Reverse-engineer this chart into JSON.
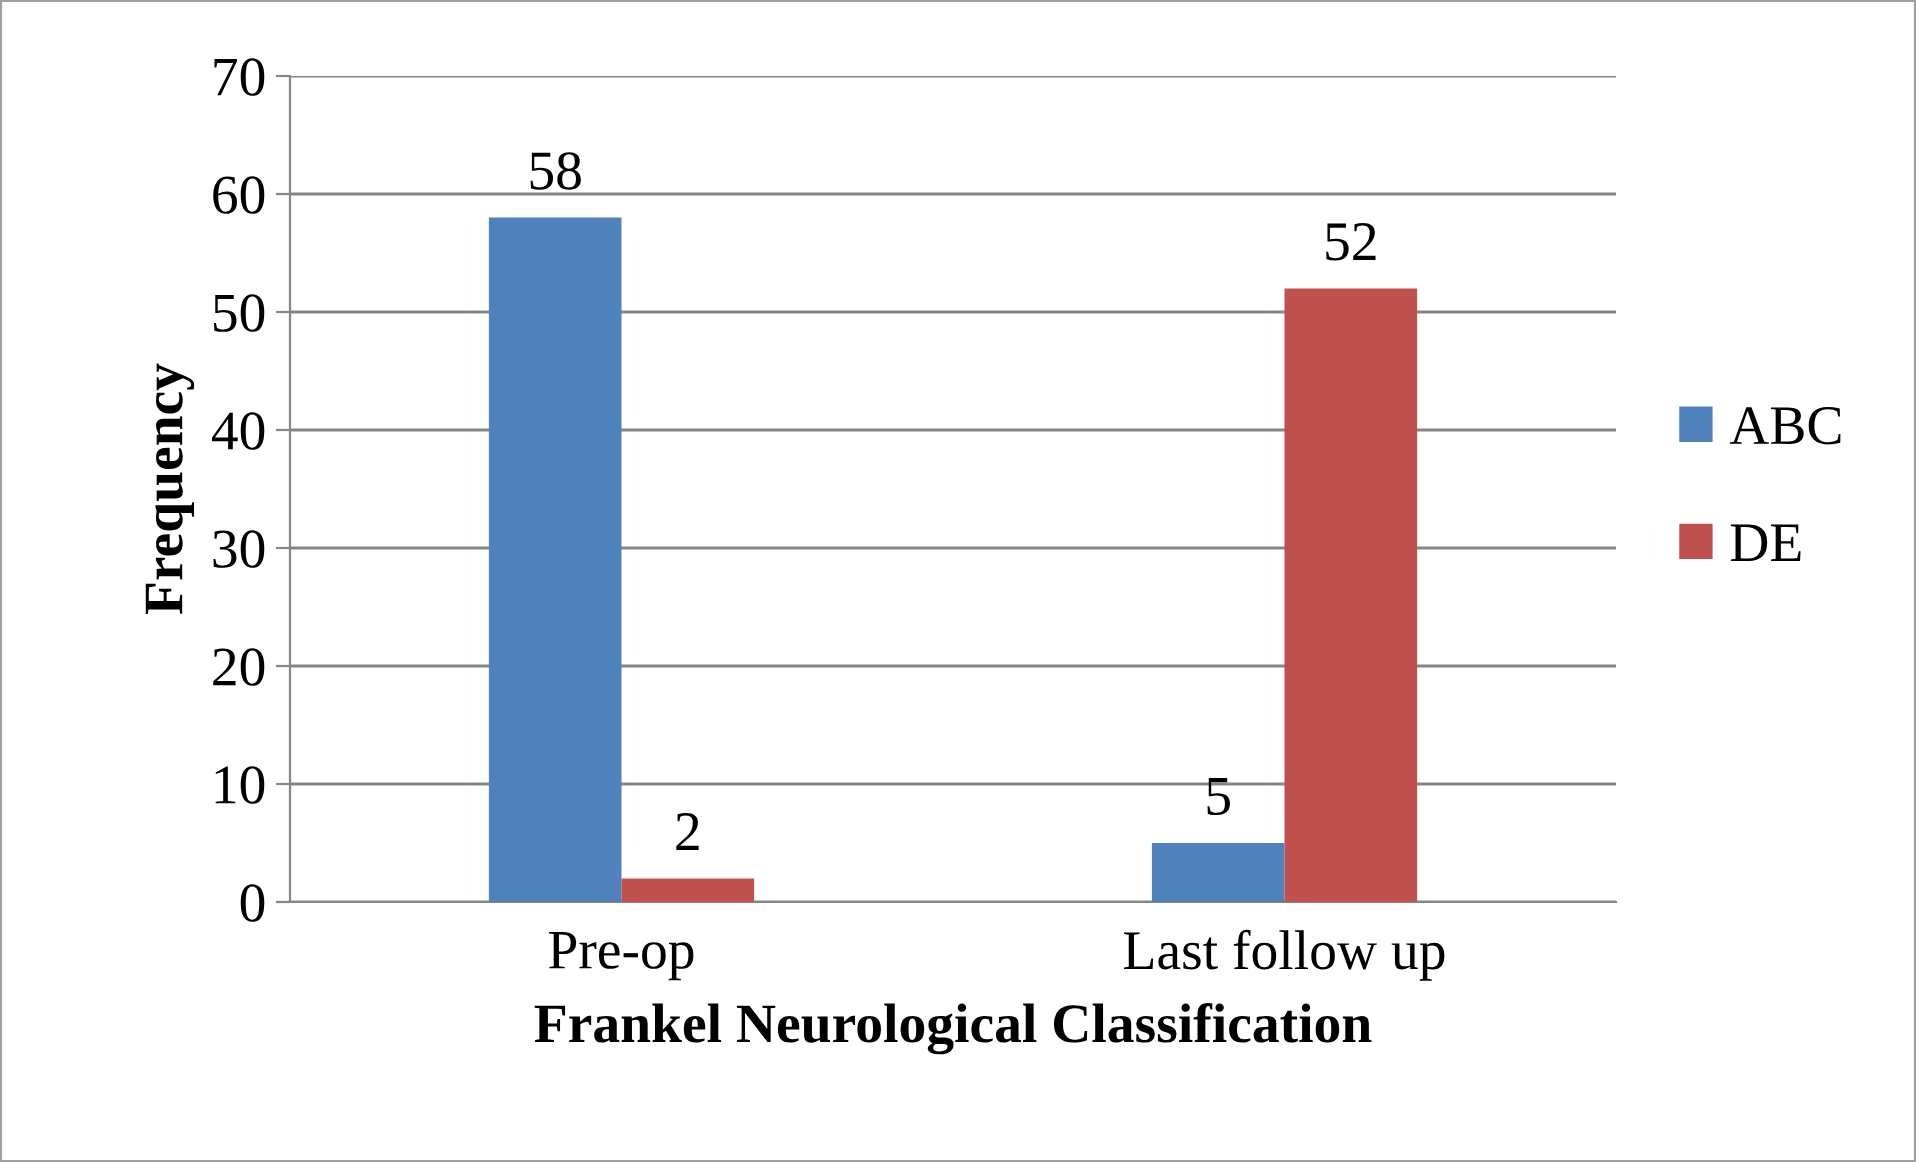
{
  "chart_data": {
    "type": "bar",
    "xlabel": "Frankel Neurological Classification",
    "ylabel": "Frequency",
    "categories": [
      "Pre-op",
      "Last follow up"
    ],
    "series": [
      {
        "name": "ABC",
        "color": "#4f81bd",
        "values": [
          58,
          5
        ]
      },
      {
        "name": "DE",
        "color": "#c0504d",
        "values": [
          2,
          52
        ]
      }
    ],
    "ylim": [
      0,
      70
    ],
    "yticks": [
      0,
      10,
      20,
      30,
      40,
      50,
      60,
      70
    ],
    "grid": "y",
    "legend": "right",
    "data_labels": true
  }
}
